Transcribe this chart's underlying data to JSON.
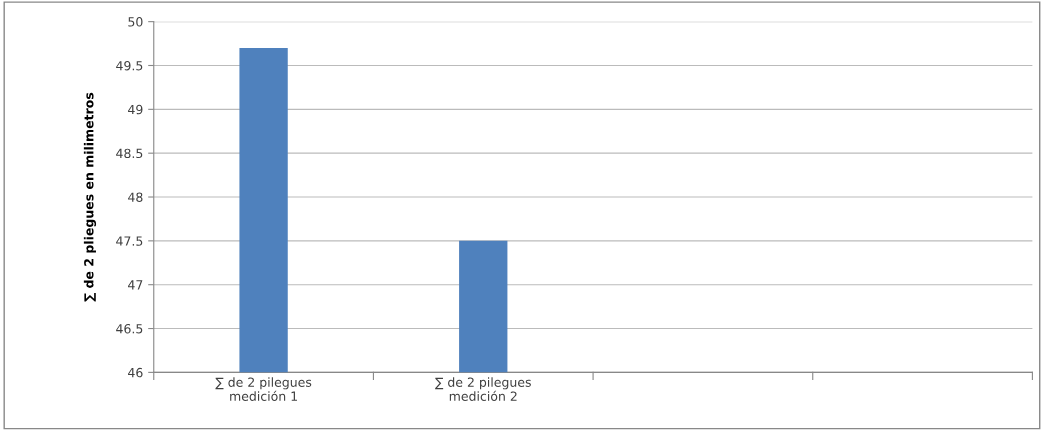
{
  "chart_data": {
    "type": "bar",
    "ylabel": "∑ de 2 pliegues en milimetros",
    "categories": [
      "∑ de 2 pilegues\nmedición 1",
      "∑ de 2 pilegues\nmedición 2",
      null,
      null
    ],
    "series": [
      {
        "color": "#4f81bd",
        "values": [
          49.7,
          47.5,
          null,
          null
        ]
      }
    ],
    "ylim": [
      46,
      50
    ],
    "yticks": [
      46,
      {
        "value": 46.5,
        "label": "46.5"
      },
      47,
      {
        "value": 47.5,
        "label": "47.5"
      },
      48,
      {
        "value": 48.5,
        "label": "48.5"
      },
      49,
      {
        "value": 49.5,
        "label": "49.5"
      },
      50
    ],
    "grid": "y",
    "legend": false
  }
}
